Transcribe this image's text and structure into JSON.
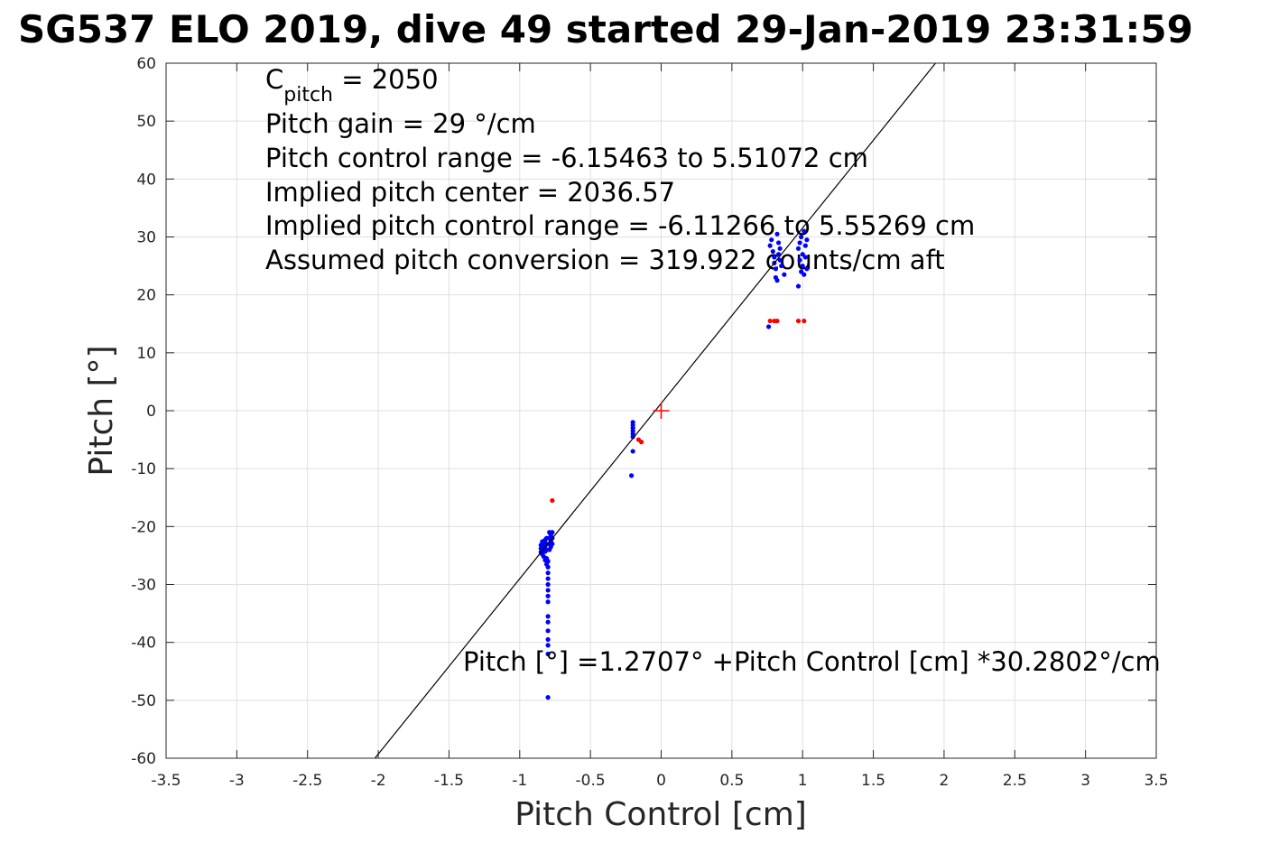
{
  "chart_data": {
    "type": "scatter",
    "title": "SG537 ELO 2019, dive 49 started 29-Jan-2019 23:31:59",
    "xlabel": "Pitch Control [cm]",
    "ylabel": "Pitch [°]",
    "xlim": [
      -3.5,
      3.5
    ],
    "ylim": [
      -60,
      60
    ],
    "xticks": [
      -3.5,
      -3,
      -2.5,
      -2,
      -1.5,
      -1,
      -0.5,
      0,
      0.5,
      1,
      1.5,
      2,
      2.5,
      3,
      3.5
    ],
    "xtick_labels": [
      "-3.5",
      "-3",
      "-2.5",
      "-2",
      "-1.5",
      "-1",
      "-0.5",
      "0",
      "0.5",
      "1",
      "1.5",
      "2",
      "2.5",
      "3",
      "3.5"
    ],
    "yticks": [
      -60,
      -50,
      -40,
      -30,
      -20,
      -10,
      0,
      10,
      20,
      30,
      40,
      50,
      60
    ],
    "ytick_labels": [
      "-60",
      "-50",
      "-40",
      "-30",
      "-20",
      "-10",
      "0",
      "10",
      "20",
      "30",
      "40",
      "50",
      "60"
    ],
    "grid": true,
    "series": [
      {
        "color": "#0000ff",
        "points": [
          [
            -0.85,
            -23.2
          ],
          [
            -0.85,
            -23.8
          ],
          [
            -0.85,
            -24.4
          ],
          [
            -0.84,
            -22.6
          ],
          [
            -0.84,
            -23.6
          ],
          [
            -0.84,
            -24.8
          ],
          [
            -0.83,
            -22.9
          ],
          [
            -0.83,
            -23.9
          ],
          [
            -0.83,
            -25.2
          ],
          [
            -0.82,
            -22.3
          ],
          [
            -0.82,
            -23.3
          ],
          [
            -0.82,
            -24.3
          ],
          [
            -0.82,
            -25.8
          ],
          [
            -0.81,
            -22.0
          ],
          [
            -0.81,
            -23.0
          ],
          [
            -0.81,
            -24.0
          ],
          [
            -0.81,
            -25.5
          ],
          [
            -0.81,
            -26.5
          ],
          [
            -0.8,
            -26.0
          ],
          [
            -0.8,
            -27.0
          ],
          [
            -0.8,
            -28.0
          ],
          [
            -0.8,
            -29.0
          ],
          [
            -0.8,
            -30.0
          ],
          [
            -0.8,
            -31.0
          ],
          [
            -0.8,
            -32.0
          ],
          [
            -0.8,
            -33.0
          ],
          [
            -0.8,
            -35.5
          ],
          [
            -0.8,
            -36.5
          ],
          [
            -0.8,
            -38.0
          ],
          [
            -0.8,
            -39.5
          ],
          [
            -0.8,
            -40.5
          ],
          [
            -0.8,
            -42.0
          ],
          [
            -0.8,
            -49.5
          ],
          [
            -0.79,
            -21.0
          ],
          [
            -0.79,
            -22.0
          ],
          [
            -0.79,
            -23.0
          ],
          [
            -0.79,
            -24.0
          ],
          [
            -0.78,
            -21.5
          ],
          [
            -0.78,
            -22.5
          ],
          [
            -0.78,
            -23.5
          ],
          [
            -0.77,
            -21.0
          ],
          [
            -0.77,
            -22.0
          ],
          [
            -0.77,
            -23.0
          ],
          [
            -0.2,
            -2.0
          ],
          [
            -0.2,
            -2.5
          ],
          [
            -0.2,
            -3.0
          ],
          [
            -0.2,
            -3.5
          ],
          [
            -0.2,
            -4.0
          ],
          [
            -0.2,
            -4.5
          ],
          [
            -0.2,
            -7.0
          ],
          [
            -0.21,
            -11.2
          ],
          [
            0.76,
            14.5
          ],
          [
            0.77,
            28.5
          ],
          [
            0.78,
            29.5
          ],
          [
            0.79,
            27.5
          ],
          [
            0.8,
            26.5
          ],
          [
            0.8,
            25.5
          ],
          [
            0.81,
            24.5
          ],
          [
            0.81,
            23.0
          ],
          [
            0.82,
            22.5
          ],
          [
            0.82,
            30.5
          ],
          [
            0.83,
            29.0
          ],
          [
            0.83,
            27.0
          ],
          [
            0.84,
            26.0
          ],
          [
            0.84,
            28.0
          ],
          [
            0.85,
            25.0
          ],
          [
            0.87,
            23.5
          ],
          [
            0.97,
            21.5
          ],
          [
            0.97,
            28.0
          ],
          [
            0.98,
            29.0
          ],
          [
            0.98,
            26.0
          ],
          [
            0.99,
            24.0
          ],
          [
            0.99,
            30.0
          ],
          [
            1.0,
            27.0
          ],
          [
            1.0,
            25.0
          ],
          [
            1.01,
            31.0
          ],
          [
            1.01,
            23.5
          ],
          [
            1.02,
            28.5
          ],
          [
            1.02,
            26.5
          ],
          [
            1.03,
            24.5
          ],
          [
            1.03,
            29.5
          ]
        ]
      },
      {
        "color": "#ff0000",
        "points": [
          [
            -0.77,
            -15.5
          ],
          [
            -0.16,
            -5.0
          ],
          [
            -0.14,
            -5.4
          ],
          [
            0.77,
            15.5
          ],
          [
            0.8,
            15.5
          ],
          [
            0.82,
            15.5
          ],
          [
            0.97,
            15.5
          ],
          [
            1.01,
            15.5
          ]
        ]
      }
    ],
    "fit_line": {
      "intercept": 1.2707,
      "slope": 30.2802,
      "color": "#000000"
    },
    "center_marker": {
      "x": 0,
      "y": 0,
      "color": "#ff0000"
    },
    "annotations": {
      "c_pitch": {
        "symbol": "C",
        "subscript": "pitch",
        "rest": " = 2050"
      },
      "lines": [
        "Pitch gain = 29 °/cm",
        "Pitch control range = -6.15463 to 5.51072 cm",
        "Implied pitch center = 2036.57",
        "Implied pitch control range = -6.11266 to 5.55269 cm",
        "Assumed pitch conversion = 319.922 counts/cm aft"
      ],
      "fit_equation": "Pitch [°] =1.2707° +Pitch Control [cm] *30.2802°/cm"
    }
  }
}
